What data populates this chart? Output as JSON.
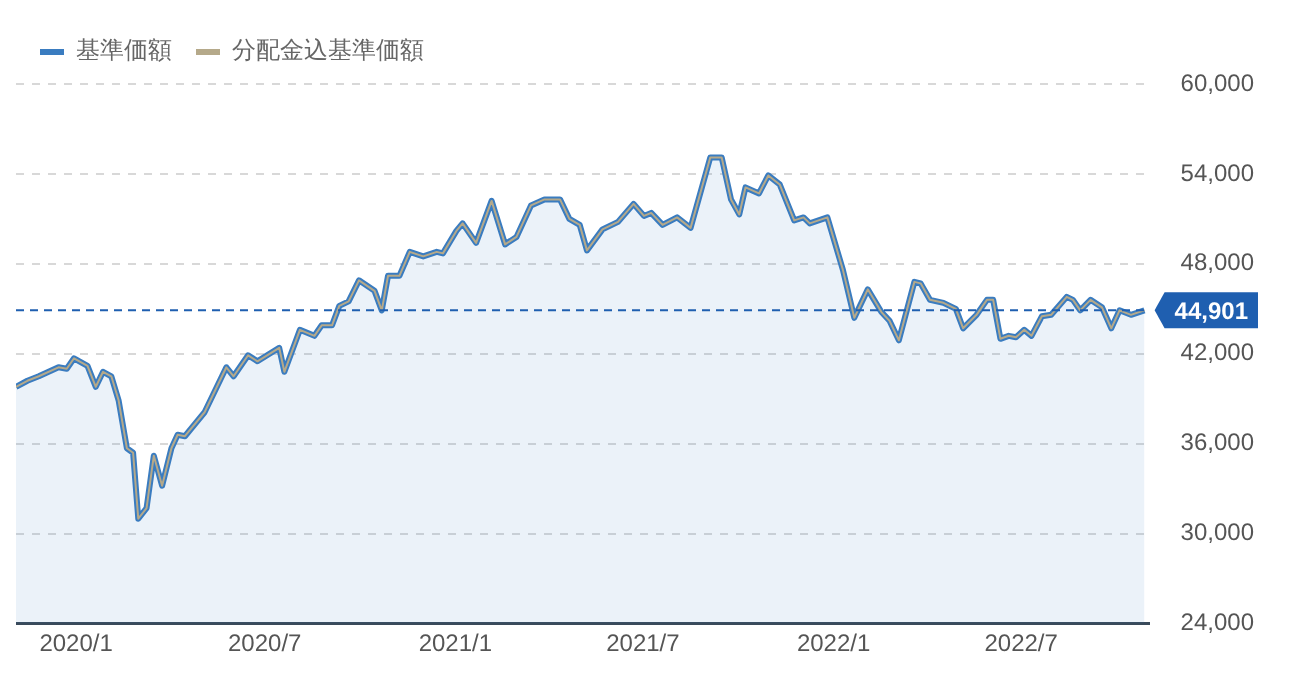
{
  "chart_data": {
    "type": "area",
    "x": [
      "2019-11-04",
      "2019-11-15",
      "2019-11-26",
      "2019-12-15",
      "2019-12-23",
      "2019-12-30",
      "2020-01-12",
      "2020-01-20",
      "2020-01-27",
      "2020-02-04",
      "2020-02-11",
      "2020-02-19",
      "2020-02-25",
      "2020-03-01",
      "2020-03-09",
      "2020-03-16",
      "2020-03-24",
      "2020-04-02",
      "2020-04-08",
      "2020-04-15",
      "2020-05-04",
      "2020-05-25",
      "2020-06-01",
      "2020-06-15",
      "2020-06-24",
      "2020-07-15",
      "2020-07-20",
      "2020-08-04",
      "2020-08-18",
      "2020-08-25",
      "2020-09-04",
      "2020-09-11",
      "2020-09-20",
      "2020-09-30",
      "2020-10-15",
      "2020-10-22",
      "2020-10-28",
      "2020-11-08",
      "2020-11-18",
      "2020-12-01",
      "2020-12-14",
      "2020-12-20",
      "2021-01-02",
      "2021-01-08",
      "2021-01-21",
      "2021-02-05",
      "2021-02-18",
      "2021-03-01",
      "2021-03-15",
      "2021-03-28",
      "2021-04-12",
      "2021-04-21",
      "2021-05-01",
      "2021-05-08",
      "2021-05-23",
      "2021-06-07",
      "2021-06-22",
      "2021-07-02",
      "2021-07-09",
      "2021-07-20",
      "2021-08-03",
      "2021-08-16",
      "2021-09-04",
      "2021-09-15",
      "2021-09-24",
      "2021-10-02",
      "2021-10-08",
      "2021-10-21",
      "2021-10-30",
      "2021-11-10",
      "2021-11-24",
      "2021-12-03",
      "2021-12-09",
      "2021-12-26",
      "2022-01-10",
      "2022-01-21",
      "2022-02-03",
      "2022-02-16",
      "2022-02-24",
      "2022-03-05",
      "2022-03-20",
      "2022-03-26",
      "2022-04-04",
      "2022-04-17",
      "2022-04-29",
      "2022-05-06",
      "2022-05-19",
      "2022-05-29",
      "2022-06-04",
      "2022-06-11",
      "2022-06-19",
      "2022-06-26",
      "2022-07-04",
      "2022-07-11",
      "2022-07-21",
      "2022-07-30",
      "2022-08-14",
      "2022-08-20",
      "2022-08-27",
      "2022-09-06",
      "2022-09-17",
      "2022-09-26",
      "2022-10-04",
      "2022-10-15",
      "2022-10-28"
    ],
    "series": [
      {
        "name": "基準価額",
        "color": "#3a7cc0",
        "values": [
          39800,
          40200,
          40500,
          41100,
          41000,
          41700,
          41200,
          39800,
          40800,
          40500,
          38900,
          35700,
          35400,
          31000,
          31700,
          35200,
          33200,
          35700,
          36600,
          36500,
          38100,
          41100,
          40500,
          41900,
          41500,
          42400,
          40800,
          43600,
          43200,
          43900,
          43900,
          45200,
          45500,
          46900,
          46200,
          44900,
          47200,
          47200,
          48800,
          48500,
          48800,
          48700,
          50200,
          50700,
          49400,
          52200,
          49300,
          49800,
          51900,
          52300,
          52300,
          51000,
          50600,
          48900,
          50300,
          50800,
          52000,
          51200,
          51400,
          50600,
          51100,
          50400,
          55100,
          55100,
          52300,
          51300,
          53100,
          52700,
          53900,
          53300,
          50900,
          51100,
          50700,
          51100,
          47600,
          44400,
          46300,
          44800,
          44200,
          42900,
          46800,
          46700,
          45600,
          45400,
          45000,
          43700,
          44600,
          45600,
          45600,
          43000,
          43200,
          43100,
          43600,
          43200,
          44500,
          44600,
          45800,
          45600,
          44900,
          45600,
          45100,
          43700,
          44900,
          44600,
          44901
        ]
      },
      {
        "name": "分配金込基準価額",
        "color": "#b5a98a",
        "type": "line",
        "values": [
          39800,
          40200,
          40500,
          41100,
          41000,
          41700,
          41200,
          39800,
          40800,
          40500,
          38900,
          35700,
          35400,
          31000,
          31700,
          35200,
          33200,
          35700,
          36600,
          36500,
          38100,
          41100,
          40500,
          41900,
          41500,
          42400,
          40800,
          43600,
          43200,
          43900,
          43900,
          45200,
          45500,
          46900,
          46200,
          44900,
          47200,
          47200,
          48800,
          48500,
          48800,
          48700,
          50200,
          50700,
          49400,
          52200,
          49300,
          49800,
          51900,
          52300,
          52300,
          51000,
          50600,
          48900,
          50300,
          50800,
          52000,
          51200,
          51400,
          50600,
          51100,
          50400,
          55100,
          55100,
          52300,
          51300,
          53100,
          52700,
          53900,
          53300,
          50900,
          51100,
          50700,
          51100,
          47600,
          44400,
          46300,
          44800,
          44200,
          42900,
          46800,
          46700,
          45600,
          45400,
          45000,
          43700,
          44600,
          45600,
          45600,
          43000,
          43200,
          43100,
          43600,
          43200,
          44500,
          44600,
          45800,
          45600,
          44900,
          45600,
          45100,
          43700,
          44900,
          44600,
          44901
        ]
      }
    ],
    "xlim": [
      "2019-11-04",
      "2022-11-01"
    ],
    "xticks": [
      {
        "value": "2020-01",
        "label": "2020/1"
      },
      {
        "value": "2020-07",
        "label": "2020/7"
      },
      {
        "value": "2021-01",
        "label": "2021/1"
      },
      {
        "value": "2021-07",
        "label": "2021/7"
      },
      {
        "value": "2022-01",
        "label": "2022/1"
      },
      {
        "value": "2022-07",
        "label": "2022/7"
      }
    ],
    "ylim": [
      24000,
      60000
    ],
    "yticks": [
      {
        "value": 24000,
        "label": "24,000"
      },
      {
        "value": 30000,
        "label": "30,000"
      },
      {
        "value": 36000,
        "label": "36,000"
      },
      {
        "value": 42000,
        "label": "42,000"
      },
      {
        "value": 48000,
        "label": "48,000"
      },
      {
        "value": 54000,
        "label": "54,000"
      },
      {
        "value": 60000,
        "label": "60,000"
      }
    ],
    "ref_lines": [
      {
        "axis": "y",
        "value": 44901,
        "label": "44,901",
        "color": "#1f5fb0",
        "line_style": "dashed"
      }
    ],
    "grid": "y",
    "legend": "top left"
  }
}
